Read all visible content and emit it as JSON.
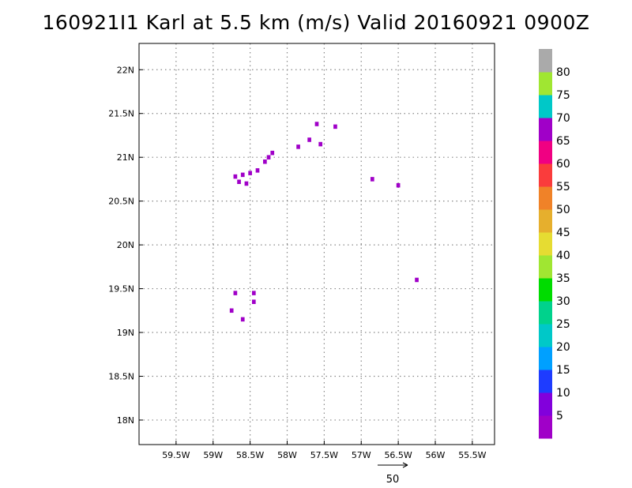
{
  "title": "160921I1 Karl at 5.5 km (m/s) Valid 20160921 0900Z",
  "chart_data": {
    "type": "heatmap",
    "title": "160921I1 Karl at 5.5 km (m/s) Valid 20160921 0900Z",
    "x_axis": {
      "range": [
        -60.0,
        -55.2
      ],
      "ticks": [
        -59.5,
        -59,
        -58.5,
        -58,
        -57.5,
        -57,
        -56.5,
        -56,
        -55.5
      ],
      "tick_labels": [
        "59.5W",
        "59W",
        "58.5W",
        "58W",
        "57.5W",
        "57W",
        "56.5W",
        "56W",
        "55.5W"
      ]
    },
    "y_axis": {
      "range": [
        17.72,
        22.3
      ],
      "ticks": [
        18,
        18.5,
        19,
        19.5,
        20,
        20.5,
        21,
        21.5,
        22
      ],
      "tick_labels": [
        "18N",
        "18.5N",
        "19N",
        "19.5N",
        "20N",
        "20.5N",
        "21N",
        "21.5N",
        "22N"
      ]
    },
    "grid": true,
    "colorbar": {
      "levels": [
        0,
        5,
        10,
        15,
        20,
        25,
        30,
        35,
        40,
        45,
        50,
        55,
        60,
        65,
        70,
        75,
        80,
        85
      ],
      "labels": [
        "5",
        "10",
        "15",
        "20",
        "25",
        "30",
        "35",
        "40",
        "45",
        "50",
        "55",
        "60",
        "65",
        "70",
        "75",
        "80"
      ],
      "colors": [
        "#a000c8",
        "#8200dc",
        "#1e3cff",
        "#00a0ff",
        "#00c8c8",
        "#00d28c",
        "#00dc00",
        "#a0e632",
        "#e6dc32",
        "#e6af2d",
        "#f08228",
        "#fa3c3c",
        "#f00082",
        "#a000c8",
        "#00c8c8",
        "#a0e632",
        "#aaaaaa"
      ]
    },
    "reference_vector": {
      "value": 50,
      "label": "50"
    },
    "cells": [
      {
        "lon": -58.7,
        "lat": 20.78,
        "value": 3
      },
      {
        "lon": -58.6,
        "lat": 20.8,
        "value": 4
      },
      {
        "lon": -58.5,
        "lat": 20.82,
        "value": 3
      },
      {
        "lon": -58.55,
        "lat": 20.7,
        "value": 4
      },
      {
        "lon": -58.65,
        "lat": 20.72,
        "value": 3
      },
      {
        "lon": -58.4,
        "lat": 20.85,
        "value": 4
      },
      {
        "lon": -58.3,
        "lat": 20.95,
        "value": 3
      },
      {
        "lon": -58.2,
        "lat": 21.05,
        "value": 4
      },
      {
        "lon": -58.25,
        "lat": 21.0,
        "value": 3
      },
      {
        "lon": -57.6,
        "lat": 21.38,
        "value": 4
      },
      {
        "lon": -57.7,
        "lat": 21.2,
        "value": 3
      },
      {
        "lon": -57.55,
        "lat": 21.15,
        "value": 4
      },
      {
        "lon": -57.85,
        "lat": 21.12,
        "value": 3
      },
      {
        "lon": -57.35,
        "lat": 21.35,
        "value": 3
      },
      {
        "lon": -56.85,
        "lat": 20.75,
        "value": 3
      },
      {
        "lon": -56.5,
        "lat": 20.68,
        "value": 3
      },
      {
        "lon": -56.25,
        "lat": 19.6,
        "value": 4
      },
      {
        "lon": -58.7,
        "lat": 19.45,
        "value": 3
      },
      {
        "lon": -58.45,
        "lat": 19.45,
        "value": 4
      },
      {
        "lon": -58.45,
        "lat": 19.35,
        "value": 3
      },
      {
        "lon": -58.6,
        "lat": 19.15,
        "value": 3
      },
      {
        "lon": -58.75,
        "lat": 19.25,
        "value": 3
      }
    ]
  }
}
